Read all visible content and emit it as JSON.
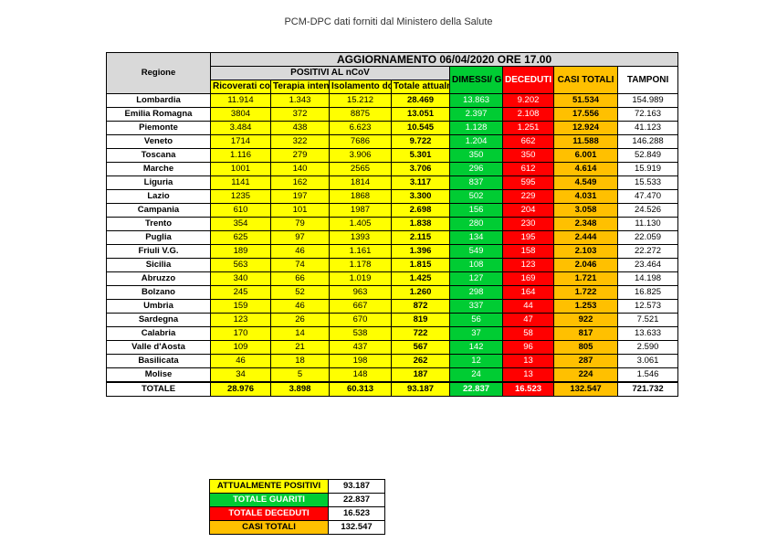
{
  "page_title": "PCM-DPC dati forniti dal Ministero della Salute",
  "table": {
    "banner": "AGGIORNAMENTO 06/04/2020 ORE 17.00",
    "positivi_banner": "POSITIVI AL nCoV",
    "headers": {
      "regione": "Regione",
      "ricoverati": "Ricoverati con sintomi",
      "terapia": "Terapia intensiva",
      "isolamento": "Isolamento domiciliare",
      "totale_positivi": "Totale attualmente positivi",
      "dimessi": "DIMESSI/ GUARITI",
      "deceduti": "DECEDUTI",
      "casi_totali": "CASI TOTALI",
      "tamponi": "TAMPONI"
    },
    "rows": [
      [
        "Lombardia",
        "11.914",
        "1.343",
        "15.212",
        "28.469",
        "13.863",
        "9.202",
        "51.534",
        "154.989"
      ],
      [
        "Emilia Romagna",
        "3804",
        "372",
        "8875",
        "13.051",
        "2.397",
        "2.108",
        "17.556",
        "72.163"
      ],
      [
        "Piemonte",
        "3.484",
        "438",
        "6.623",
        "10.545",
        "1.128",
        "1.251",
        "12.924",
        "41.123"
      ],
      [
        "Veneto",
        "1714",
        "322",
        "7686",
        "9.722",
        "1.204",
        "662",
        "11.588",
        "146.288"
      ],
      [
        "Toscana",
        "1.116",
        "279",
        "3.906",
        "5.301",
        "350",
        "350",
        "6.001",
        "52.849"
      ],
      [
        "Marche",
        "1001",
        "140",
        "2565",
        "3.706",
        "296",
        "612",
        "4.614",
        "15.919"
      ],
      [
        "Liguria",
        "1141",
        "162",
        "1814",
        "3.117",
        "837",
        "595",
        "4.549",
        "15.533"
      ],
      [
        "Lazio",
        "1235",
        "197",
        "1868",
        "3.300",
        "502",
        "229",
        "4.031",
        "47.470"
      ],
      [
        "Campania",
        "610",
        "101",
        "1987",
        "2.698",
        "156",
        "204",
        "3.058",
        "24.526"
      ],
      [
        "Trento",
        "354",
        "79",
        "1.405",
        "1.838",
        "280",
        "230",
        "2.348",
        "11.130"
      ],
      [
        "Puglia",
        "625",
        "97",
        "1393",
        "2.115",
        "134",
        "195",
        "2.444",
        "22.059"
      ],
      [
        "Friuli V.G.",
        "189",
        "46",
        "1.161",
        "1.396",
        "549",
        "158",
        "2.103",
        "22.272"
      ],
      [
        "Sicilia",
        "563",
        "74",
        "1.178",
        "1.815",
        "108",
        "123",
        "2.046",
        "23.464"
      ],
      [
        "Abruzzo",
        "340",
        "66",
        "1.019",
        "1.425",
        "127",
        "169",
        "1.721",
        "14.198"
      ],
      [
        "Bolzano",
        "245",
        "52",
        "963",
        "1.260",
        "298",
        "164",
        "1.722",
        "16.825"
      ],
      [
        "Umbria",
        "159",
        "46",
        "667",
        "872",
        "337",
        "44",
        "1.253",
        "12.573"
      ],
      [
        "Sardegna",
        "123",
        "26",
        "670",
        "819",
        "56",
        "47",
        "922",
        "7.521"
      ],
      [
        "Calabria",
        "170",
        "14",
        "538",
        "722",
        "37",
        "58",
        "817",
        "13.633"
      ],
      [
        "Valle d'Aosta",
        "109",
        "21",
        "437",
        "567",
        "142",
        "96",
        "805",
        "2.590"
      ],
      [
        "Basilicata",
        "46",
        "18",
        "198",
        "262",
        "12",
        "13",
        "287",
        "3.061"
      ],
      [
        "Molise",
        "34",
        "5",
        "148",
        "187",
        "24",
        "13",
        "224",
        "1.546"
      ]
    ],
    "total": [
      "TOTALE",
      "28.976",
      "3.898",
      "60.313",
      "93.187",
      "22.837",
      "16.523",
      "132.547",
      "721.732"
    ]
  },
  "summary": [
    {
      "label": "ATTUALMENTE POSITIVI",
      "value": "93.187",
      "color": "#ffff00"
    },
    {
      "label": "TOTALE GUARITI",
      "value": "22.837",
      "color": "#00cc33"
    },
    {
      "label": "TOTALE DECEDUTI",
      "value": "16.523",
      "color": "#ff0000"
    },
    {
      "label": "CASI TOTALI",
      "value": "132.547",
      "color": "#ffc000"
    }
  ]
}
